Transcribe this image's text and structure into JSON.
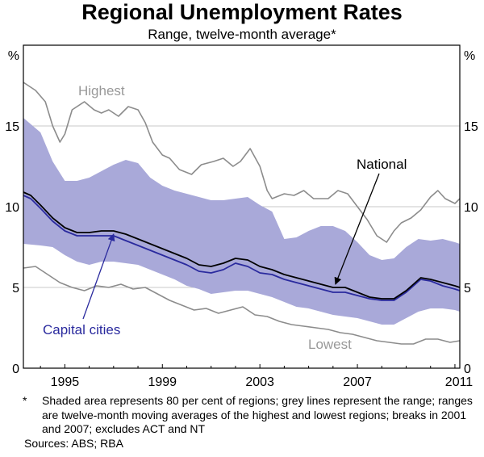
{
  "chart_data": {
    "type": "area",
    "title": "Regional Unemployment Rates",
    "subtitle": "Range, twelve-month average*",
    "y_unit_left": "%",
    "y_unit_right": "%",
    "ylim": [
      0,
      20
    ],
    "yticks": [
      0,
      5,
      10,
      15
    ],
    "xlim": [
      1993.3,
      2011.2
    ],
    "xticks": [
      1995,
      1999,
      2003,
      2007,
      2011
    ],
    "grid": true,
    "colors": {
      "band": "#a9a9d9",
      "national": "#000000",
      "capital": "#2a2a9e",
      "range": "#8c8c8c",
      "label_grey": "#999999"
    },
    "series": [
      {
        "name": "Highest",
        "role": "range-line",
        "x": [
          1993.3,
          1993.8,
          1994.2,
          1994.5,
          1994.8,
          1995.0,
          1995.3,
          1995.8,
          1996.2,
          1996.5,
          1996.8,
          1997.2,
          1997.6,
          1998.0,
          1998.3,
          1998.6,
          1999.0,
          1999.3,
          1999.7,
          2000.2,
          2000.6,
          2001.1,
          2001.5,
          2001.9,
          2002.2,
          2002.6,
          2003.0,
          2003.3,
          2003.5,
          2004.0,
          2004.4,
          2004.8,
          2005.2,
          2005.8,
          2006.2,
          2006.6,
          2007.0,
          2007.4,
          2007.8,
          2008.2,
          2008.5,
          2008.8,
          2009.2,
          2009.6,
          2010.0,
          2010.3,
          2010.6,
          2011.0,
          2011.2
        ],
        "values": [
          17.7,
          17.2,
          16.5,
          15.0,
          14.0,
          14.5,
          16.0,
          16.5,
          16.0,
          15.8,
          16.0,
          15.6,
          16.2,
          16.0,
          15.2,
          14.0,
          13.2,
          13.0,
          12.3,
          12.0,
          12.6,
          12.8,
          13.0,
          12.5,
          12.8,
          13.6,
          12.5,
          11.0,
          10.5,
          10.8,
          10.7,
          11.0,
          10.5,
          10.5,
          11.0,
          10.8,
          10.0,
          9.2,
          8.2,
          7.8,
          8.5,
          9.0,
          9.3,
          9.8,
          10.6,
          11.0,
          10.5,
          10.2,
          10.5
        ]
      },
      {
        "name": "Lowest",
        "role": "range-line",
        "x": [
          1993.3,
          1993.8,
          1994.3,
          1994.8,
          1995.3,
          1995.8,
          1996.3,
          1996.8,
          1997.3,
          1997.8,
          1998.3,
          1998.8,
          1999.3,
          1999.8,
          2000.3,
          2000.8,
          2001.3,
          2001.8,
          2002.3,
          2002.8,
          2003.3,
          2003.8,
          2004.3,
          2004.8,
          2005.3,
          2005.8,
          2006.3,
          2006.8,
          2007.3,
          2007.8,
          2008.3,
          2008.8,
          2009.3,
          2009.8,
          2010.3,
          2010.8,
          2011.2
        ],
        "values": [
          6.2,
          6.3,
          5.8,
          5.3,
          5.0,
          4.8,
          5.1,
          5.0,
          5.2,
          4.9,
          5.0,
          4.6,
          4.2,
          3.9,
          3.6,
          3.7,
          3.4,
          3.6,
          3.8,
          3.3,
          3.2,
          2.9,
          2.7,
          2.6,
          2.5,
          2.4,
          2.2,
          2.1,
          1.9,
          1.7,
          1.6,
          1.5,
          1.5,
          1.8,
          1.8,
          1.6,
          1.7
        ]
      },
      {
        "name": "80 per cent band upper",
        "role": "band-upper",
        "x": [
          1993.3,
          1994.0,
          1994.5,
          1995.0,
          1995.5,
          1996.0,
          1996.5,
          1997.0,
          1997.5,
          1998.0,
          1998.5,
          1999.0,
          1999.5,
          2000.0,
          2000.5,
          2001.0,
          2001.5,
          2002.0,
          2002.5,
          2003.0,
          2003.5,
          2004.0,
          2004.5,
          2005.0,
          2005.5,
          2006.0,
          2006.5,
          2007.0,
          2007.5,
          2008.0,
          2008.5,
          2009.0,
          2009.5,
          2010.0,
          2010.5,
          2011.0,
          2011.2
        ],
        "values": [
          15.5,
          14.6,
          12.8,
          11.6,
          11.6,
          11.8,
          12.2,
          12.6,
          12.9,
          12.7,
          11.8,
          11.3,
          11.0,
          10.8,
          10.6,
          10.4,
          10.4,
          10.5,
          10.6,
          10.1,
          9.7,
          8.0,
          8.1,
          8.5,
          8.8,
          8.8,
          8.5,
          7.8,
          7.0,
          6.7,
          6.8,
          7.5,
          8.0,
          7.9,
          8.0,
          7.8,
          7.7
        ]
      },
      {
        "name": "80 per cent band lower",
        "role": "band-lower",
        "x": [
          1993.3,
          1994.0,
          1994.5,
          1995.0,
          1995.5,
          1996.0,
          1996.5,
          1997.0,
          1997.5,
          1998.0,
          1998.5,
          1999.0,
          1999.5,
          2000.0,
          2000.5,
          2001.0,
          2001.5,
          2002.0,
          2002.5,
          2003.0,
          2003.5,
          2004.0,
          2004.5,
          2005.0,
          2005.5,
          2006.0,
          2006.5,
          2007.0,
          2007.5,
          2008.0,
          2008.5,
          2009.0,
          2009.5,
          2010.0,
          2010.5,
          2011.0,
          2011.2
        ],
        "values": [
          7.7,
          7.6,
          7.5,
          7.0,
          6.6,
          6.4,
          6.6,
          6.6,
          6.5,
          6.4,
          6.1,
          5.8,
          5.5,
          5.1,
          4.9,
          4.6,
          4.7,
          4.8,
          4.8,
          4.6,
          4.4,
          4.1,
          3.8,
          3.7,
          3.5,
          3.3,
          3.2,
          3.1,
          2.9,
          2.7,
          2.7,
          3.1,
          3.5,
          3.7,
          3.7,
          3.6,
          3.5
        ]
      },
      {
        "name": "National",
        "role": "line",
        "x": [
          1993.3,
          1993.6,
          1994.0,
          1994.5,
          1995.0,
          1995.5,
          1996.0,
          1996.5,
          1997.0,
          1997.5,
          1998.0,
          1998.5,
          1999.0,
          1999.5,
          2000.0,
          2000.5,
          2001.0,
          2001.5,
          2002.0,
          2002.5,
          2003.0,
          2003.5,
          2004.0,
          2004.5,
          2005.0,
          2005.5,
          2006.0,
          2006.5,
          2007.0,
          2007.5,
          2008.0,
          2008.5,
          2009.0,
          2009.3,
          2009.6,
          2010.0,
          2010.5,
          2011.0,
          2011.2
        ],
        "values": [
          10.9,
          10.7,
          10.1,
          9.3,
          8.7,
          8.4,
          8.4,
          8.5,
          8.5,
          8.3,
          8.0,
          7.7,
          7.4,
          7.1,
          6.8,
          6.4,
          6.3,
          6.5,
          6.8,
          6.7,
          6.3,
          6.1,
          5.8,
          5.6,
          5.4,
          5.2,
          5.0,
          5.0,
          4.7,
          4.4,
          4.3,
          4.3,
          4.8,
          5.2,
          5.6,
          5.5,
          5.3,
          5.1,
          5.0
        ]
      },
      {
        "name": "Capital cities",
        "role": "line",
        "x": [
          1993.3,
          1993.6,
          1994.0,
          1994.5,
          1995.0,
          1995.5,
          1996.0,
          1996.5,
          1997.0,
          1997.5,
          1998.0,
          1998.5,
          1999.0,
          1999.5,
          2000.0,
          2000.5,
          2001.0,
          2001.5,
          2002.0,
          2002.5,
          2003.0,
          2003.5,
          2004.0,
          2004.5,
          2005.0,
          2005.5,
          2006.0,
          2006.5,
          2007.0,
          2007.5,
          2008.0,
          2008.5,
          2009.0,
          2009.3,
          2009.6,
          2010.0,
          2010.5,
          2011.0,
          2011.2
        ],
        "values": [
          10.7,
          10.5,
          9.9,
          9.1,
          8.5,
          8.2,
          8.2,
          8.2,
          8.2,
          7.9,
          7.6,
          7.3,
          7.0,
          6.7,
          6.4,
          6.0,
          5.9,
          6.1,
          6.5,
          6.3,
          5.9,
          5.8,
          5.5,
          5.3,
          5.1,
          4.9,
          4.7,
          4.7,
          4.5,
          4.3,
          4.2,
          4.2,
          4.7,
          5.1,
          5.5,
          5.4,
          5.1,
          4.9,
          4.8
        ]
      }
    ],
    "labels": {
      "highest": "Highest",
      "lowest": "Lowest",
      "national": "National",
      "capital": "Capital cities"
    },
    "annotations": [
      {
        "target": "National",
        "at": [
          2006.1,
          5.2
        ]
      },
      {
        "target": "Capital cities",
        "at": [
          1997.0,
          8.3
        ]
      }
    ]
  },
  "footnote_mark": "*",
  "footnote": "Shaded area represents 80 per cent of regions; grey lines represent the range; ranges are twelve-month moving averages of the highest and lowest regions; breaks in 2001 and 2007; excludes ACT and NT",
  "sources": "Sources: ABS; RBA"
}
